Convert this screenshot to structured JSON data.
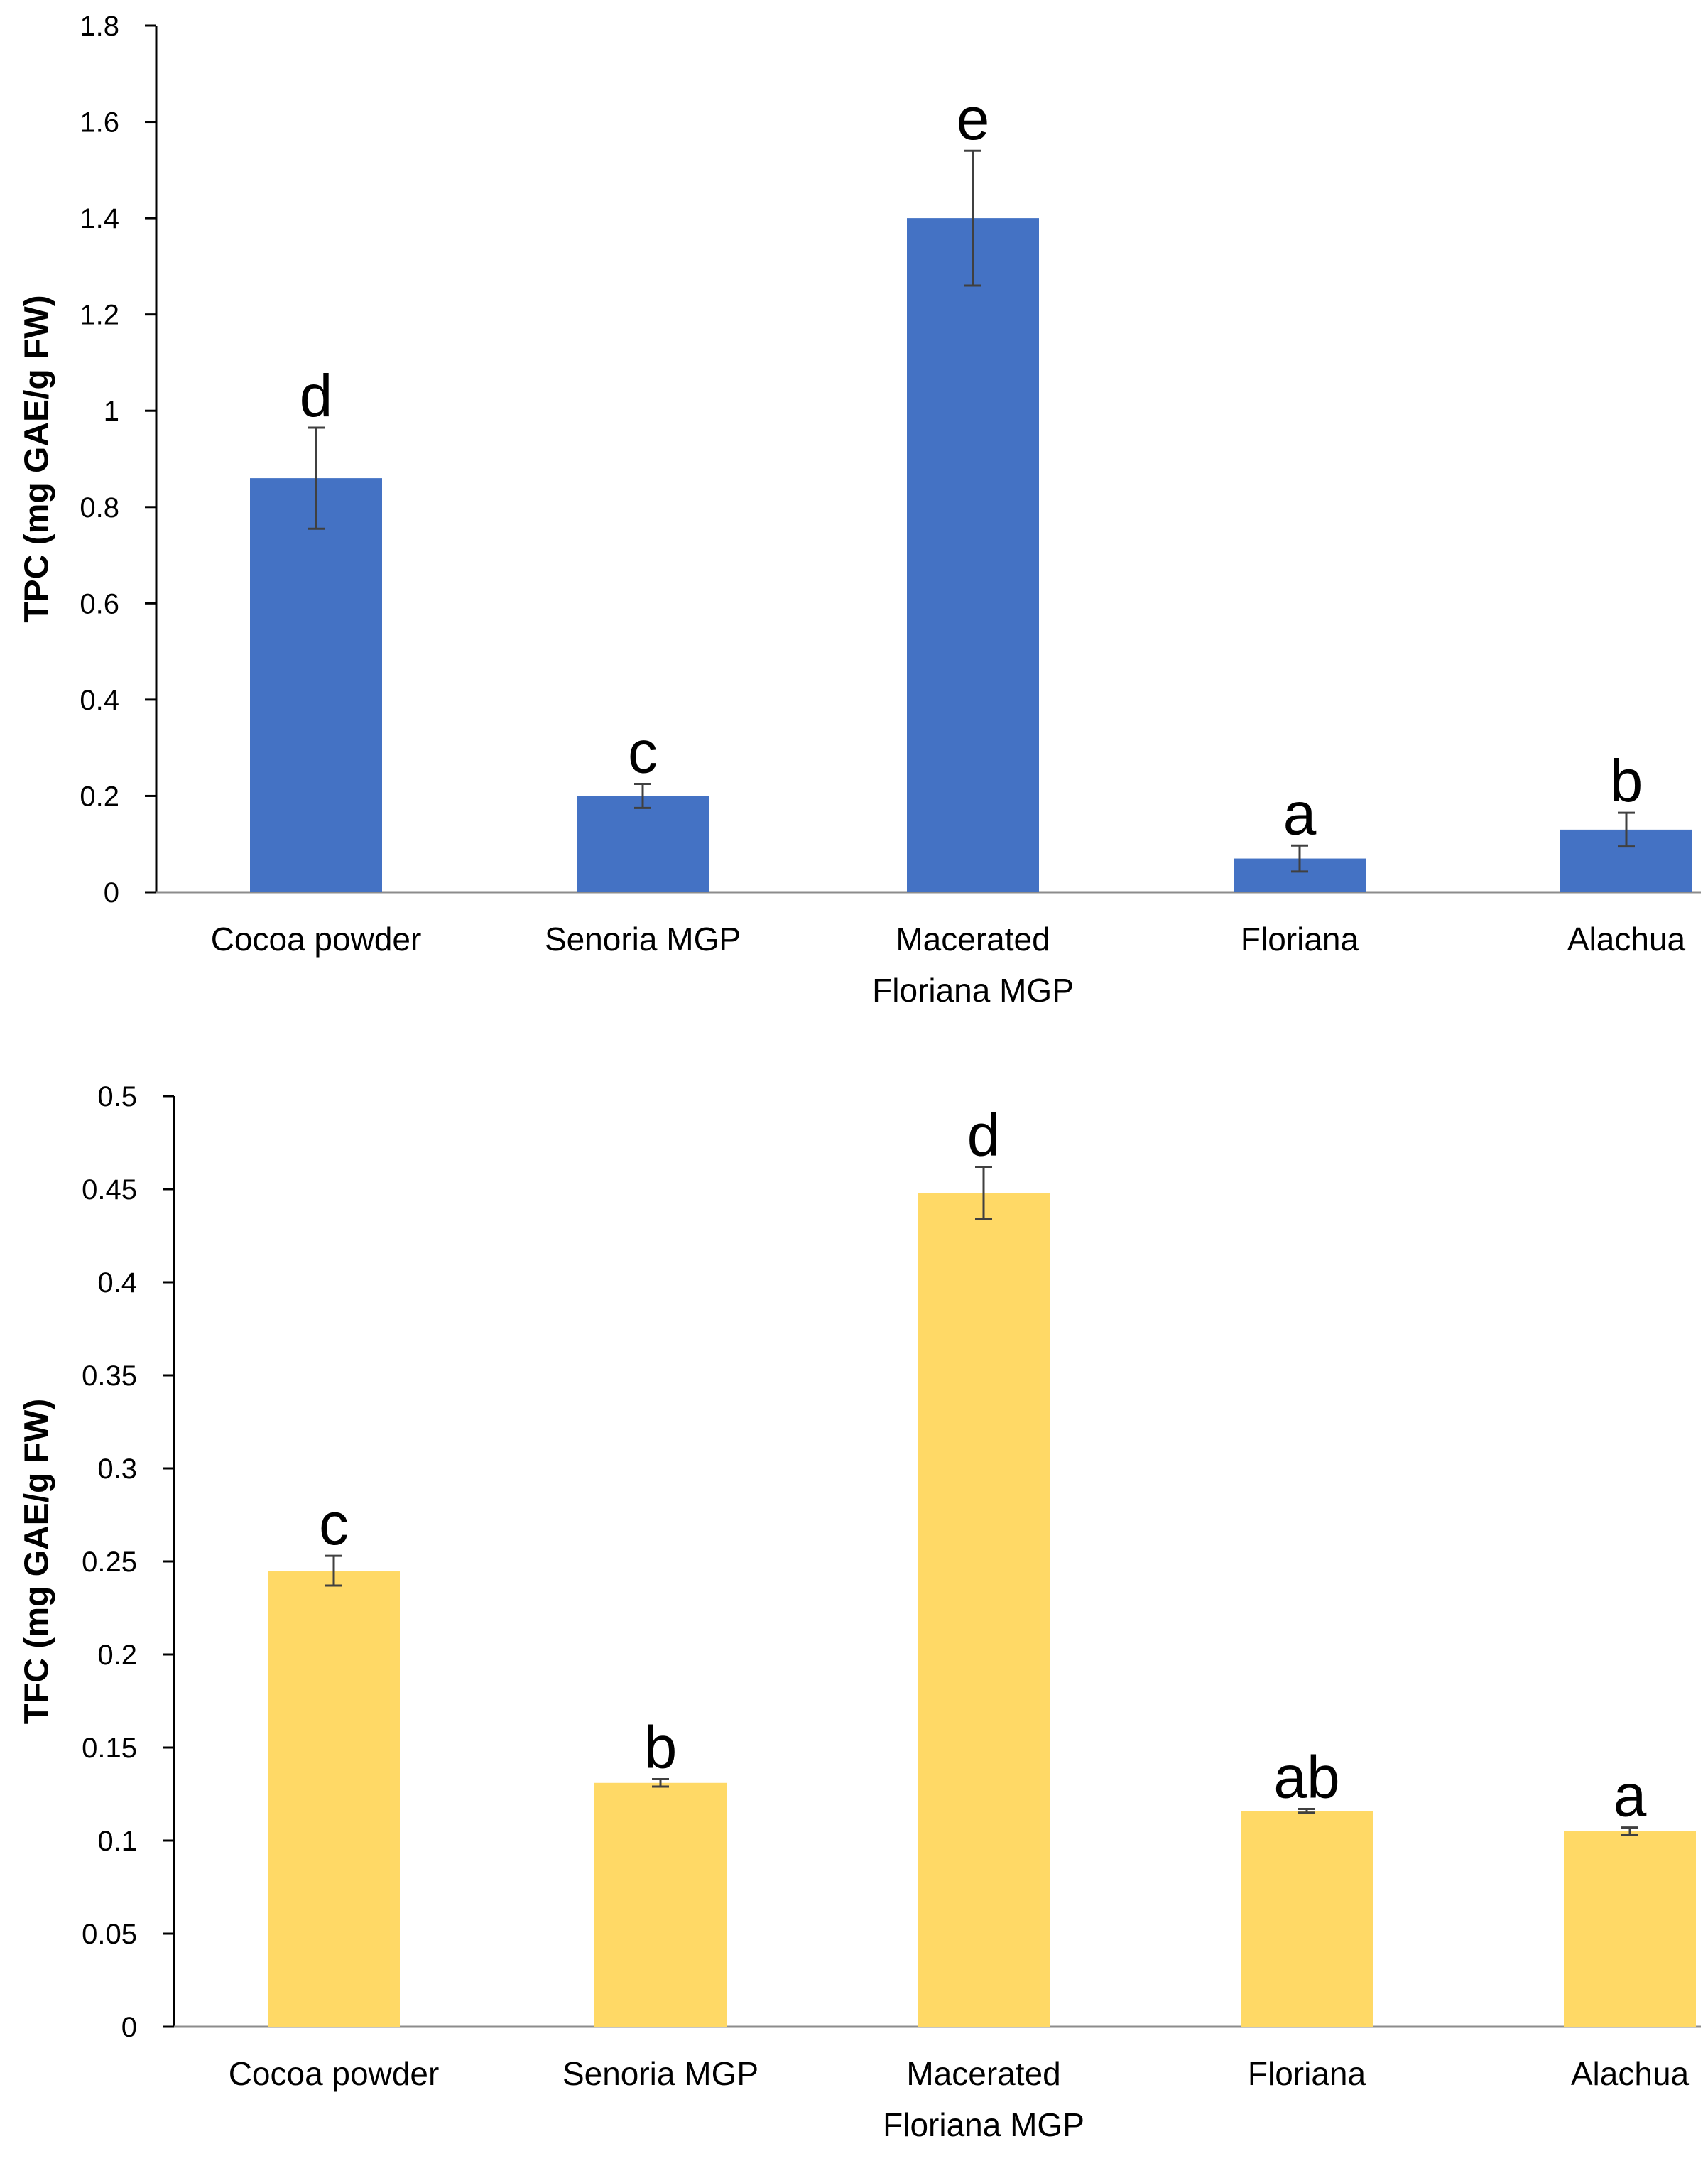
{
  "chart_data": [
    {
      "type": "bar",
      "title": "",
      "xlabel": "",
      "ylabel": "TPC (mg GAE/g FW)",
      "ylim": [
        0,
        1.8
      ],
      "yticks": [
        0,
        0.2,
        0.4,
        0.6,
        0.8,
        1,
        1.2,
        1.4,
        1.6,
        1.8
      ],
      "ytick_labels": [
        "0",
        "0.2",
        "0.4",
        "0.6",
        "0.8",
        "1",
        "1.2",
        "1.4",
        "1.6",
        "1.8"
      ],
      "grid": false,
      "legend": "none",
      "color": "#4472C4",
      "categories": [
        "Cocoa  powder",
        "Senoria MGP",
        "Macerated Floriana MGP",
        "Floriana",
        "Alachua"
      ],
      "category_lines": [
        [
          "Cocoa  powder"
        ],
        [
          "Senoria MGP"
        ],
        [
          "Macerated",
          "Floriana MGP"
        ],
        [
          "Floriana"
        ],
        [
          "Alachua"
        ]
      ],
      "values": [
        0.86,
        0.2,
        1.4,
        0.07,
        0.13
      ],
      "errors": [
        0.105,
        0.025,
        0.14,
        0.027,
        0.035
      ],
      "significance": [
        "d",
        "c",
        "e",
        "a",
        "b"
      ]
    },
    {
      "type": "bar",
      "title": "",
      "xlabel": "",
      "ylabel": "TFC (mg GAE/g FW)",
      "ylim": [
        0,
        0.5
      ],
      "yticks": [
        0,
        0.05,
        0.1,
        0.15,
        0.2,
        0.25,
        0.3,
        0.35,
        0.4,
        0.45,
        0.5
      ],
      "ytick_labels": [
        "0",
        "0.05",
        "0.1",
        "0.15",
        "0.2",
        "0.25",
        "0.3",
        "0.35",
        "0.4",
        "0.45",
        "0.5"
      ],
      "grid": false,
      "legend": "none",
      "color": "#FFD966",
      "categories": [
        "Cocoa  powder",
        "Senoria MGP",
        "Macerated Floriana MGP",
        "Floriana",
        "Alachua"
      ],
      "category_lines": [
        [
          "Cocoa  powder"
        ],
        [
          "Senoria MGP"
        ],
        [
          "Macerated",
          "Floriana MGP"
        ],
        [
          "Floriana"
        ],
        [
          "Alachua"
        ]
      ],
      "values": [
        0.245,
        0.131,
        0.448,
        0.116,
        0.105
      ],
      "errors": [
        0.008,
        0.002,
        0.014,
        0.001,
        0.002
      ],
      "significance": [
        "c",
        "b",
        "d",
        "ab",
        "a"
      ]
    }
  ]
}
